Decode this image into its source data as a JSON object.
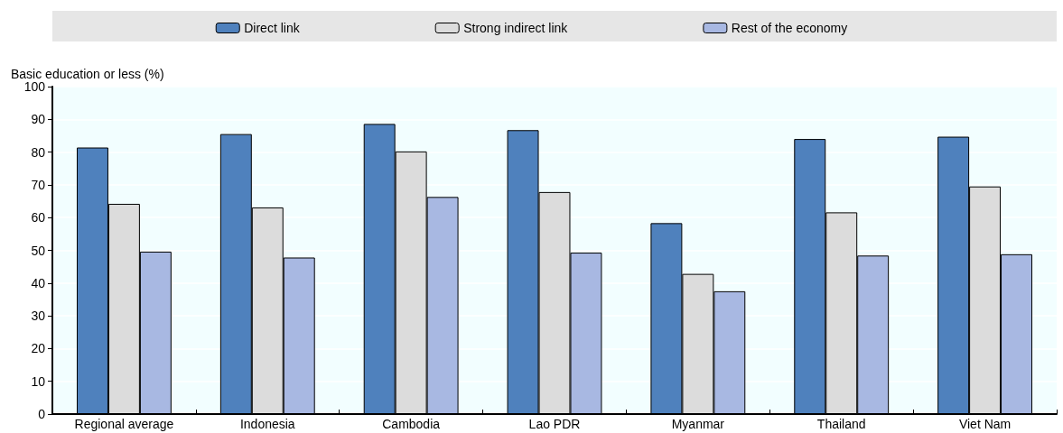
{
  "chart_data": {
    "type": "bar",
    "ylabel": "Basic education or less (%)",
    "categories": [
      "Regional average",
      "Indonesia",
      "Cambodia",
      "Lao PDR",
      "Myanmar",
      "Thailand",
      "Viet Nam"
    ],
    "series": [
      {
        "name": "Direct link",
        "color": "#4f81bd",
        "values": [
          81.4,
          85.5,
          88.6,
          86.7,
          58.3,
          84.0,
          84.7
        ]
      },
      {
        "name": "Strong indirect link",
        "color": "#dcdcdc",
        "values": [
          64.2,
          63.1,
          80.2,
          67.8,
          42.8,
          61.6,
          69.5
        ]
      },
      {
        "name": "Rest of the economy",
        "color": "#a8b8e2",
        "values": [
          49.6,
          47.8,
          66.3,
          49.3,
          37.5,
          48.4,
          48.8
        ]
      }
    ],
    "ylim": [
      0,
      100
    ],
    "yticks": [
      0,
      10,
      20,
      30,
      40,
      50,
      60,
      70,
      80,
      90,
      100
    ],
    "grid": "y",
    "legend": "top"
  }
}
